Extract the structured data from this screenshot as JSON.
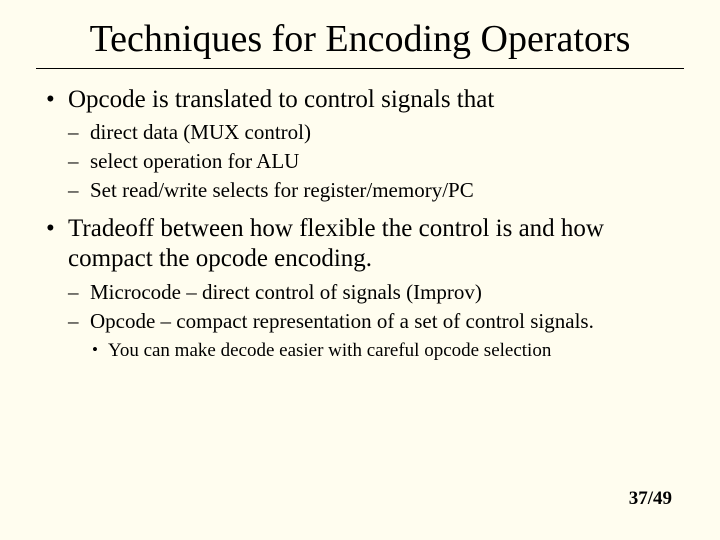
{
  "colors": {
    "background": "#fffdef",
    "text": "#000000",
    "rule": "#000000"
  },
  "typography": {
    "family": "Times New Roman",
    "title_size_pt": 38,
    "lvl1_size_pt": 25,
    "lvl2_size_pt": 21,
    "lvl3_size_pt": 19,
    "pagenum_size_pt": 19,
    "pagenum_weight": "bold"
  },
  "title": "Techniques for Encoding Operators",
  "bullets": {
    "b1": {
      "text": "Opcode is translated to control signals that",
      "sub": {
        "s1": "direct data (MUX control)",
        "s2": "select operation for ALU",
        "s3": "Set read/write selects for register/memory/PC"
      }
    },
    "b2": {
      "text": "Tradeoff between how flexible the control is and how compact the opcode encoding.",
      "sub": {
        "s1": "Microcode – direct control of signals (Improv)",
        "s2": {
          "text": "Opcode – compact representation of a set of control signals.",
          "sub": {
            "t1": "You can make decode easier with careful opcode selection"
          }
        }
      }
    }
  },
  "page": "37/49"
}
